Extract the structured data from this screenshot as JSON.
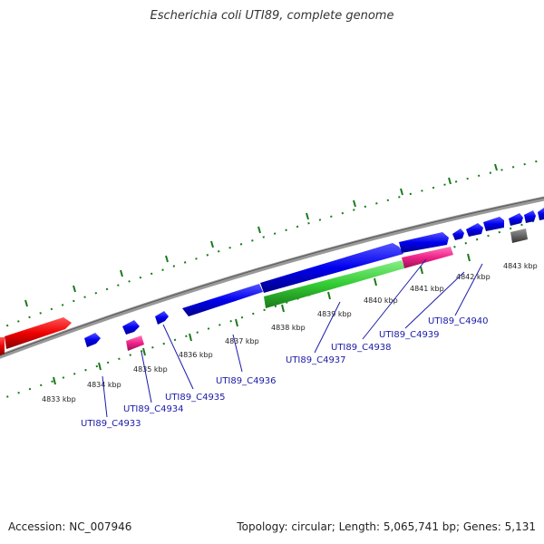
{
  "title": "Escherichia coli UTI89, complete genome",
  "footer": {
    "accession": "Accession: NC_007946",
    "stats": "Topology: circular; Length: 5,065,741 bp; Genes: 5,131"
  },
  "tick_labels": [
    "4833 kbp",
    "4834 kbp",
    "4835 kbp",
    "4836 kbp",
    "4837 kbp",
    "4838 kbp",
    "4839 kbp",
    "4840 kbp",
    "4841 kbp",
    "4842 kbp",
    "4843 kbp"
  ],
  "gene_labels": [
    "UTI89_C4933",
    "UTI89_C4934",
    "UTI89_C4935",
    "UTI89_C4936",
    "UTI89_C4937",
    "UTI89_C4938",
    "UTI89_C4939",
    "UTI89_C4940"
  ],
  "colors": {
    "cds_forward": "#0000ee",
    "cds_red": "#ee0000",
    "rna_green": "#33cc33",
    "pink": "#ee2288",
    "pseudo_grey": "#666666",
    "tick": "#1a7a1a",
    "backbone": "#888888"
  }
}
